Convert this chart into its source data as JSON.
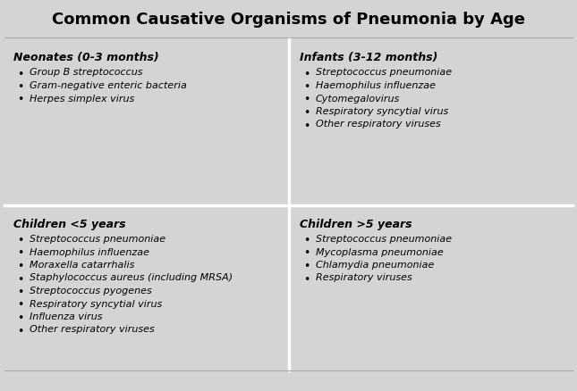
{
  "title": "Common Causative Organisms of Pneumonia by Age",
  "background_color": "#d4d4d4",
  "divider_color": "#ffffff",
  "title_fontsize": 13,
  "header_fontsize": 9,
  "body_fontsize": 8,
  "fig_width": 6.45,
  "fig_height": 4.38,
  "dpi": 100,
  "sections": [
    {
      "header": "Neonates (0-3 months)",
      "items": [
        "Group B streptococcus",
        "Gram-negative enteric bacteria",
        "Herpes simplex virus"
      ],
      "col": 0,
      "row": 0
    },
    {
      "header": "Infants (3-12 months)",
      "items": [
        "Streptococcus pneumoniae",
        "Haemophilus influenzae",
        "Cytomegalovirus",
        "Respiratory syncytial virus",
        "Other respiratory viruses"
      ],
      "col": 1,
      "row": 0
    },
    {
      "header": "Children <5 years",
      "items": [
        "Streptococcus pneumoniae",
        "Haemophilus influenzae",
        "Moraxella catarrhalis",
        "Staphylococcus aureus (including MRSA)",
        "Streptococcus pyogenes",
        "Respiratory syncytial virus",
        "Influenza virus",
        "Other respiratory viruses"
      ],
      "col": 0,
      "row": 1
    },
    {
      "header": "Children >5 years",
      "items": [
        "Streptococcus pneumoniae",
        "Mycoplasma pneumoniae",
        "Chlamydia pneumoniae",
        "Respiratory viruses"
      ],
      "col": 1,
      "row": 1
    }
  ]
}
